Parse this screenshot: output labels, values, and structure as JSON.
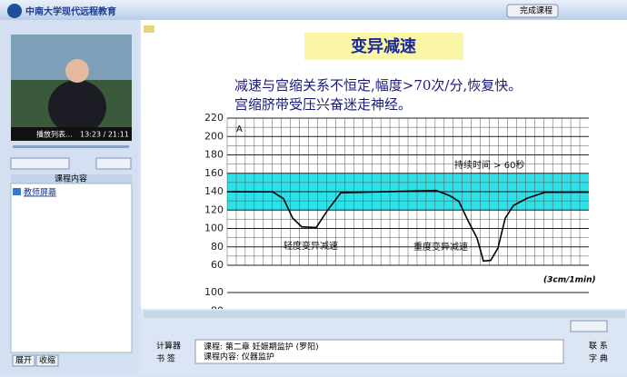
{
  "header": {
    "logo": "中南大学现代远程教育",
    "complete_button": "完成课程"
  },
  "player": {
    "playlist": "播放列表...",
    "time": "13:23 / 21:11"
  },
  "sidebar": {
    "title": "课程内容",
    "items": [
      "教师屏幕"
    ],
    "buttons": [
      "展开",
      "收缩"
    ]
  },
  "slide": {
    "title": "变异减速",
    "lines": [
      "减速与宫缩关系不恒定,幅度>70次/分,恢复快。",
      "宫缩脐带受压兴奋迷走神经。"
    ],
    "chart": {
      "panel_label": "A",
      "yticks": [
        220,
        200,
        180,
        160,
        140,
        120,
        100,
        80,
        60
      ],
      "annotations": [
        "持续时间 > 60秒",
        "轻度变异减速",
        "重度变异减速"
      ],
      "speed": "(3cm/1min)",
      "lower_yticks": [
        100,
        80
      ]
    }
  },
  "footer": {
    "left": [
      "计算器",
      "书 签"
    ],
    "course": "课程: 第二章 妊娠期监护 (罗阳)",
    "content": "课程内容: 仪器监护",
    "right": [
      "联 系",
      "字 典"
    ]
  }
}
